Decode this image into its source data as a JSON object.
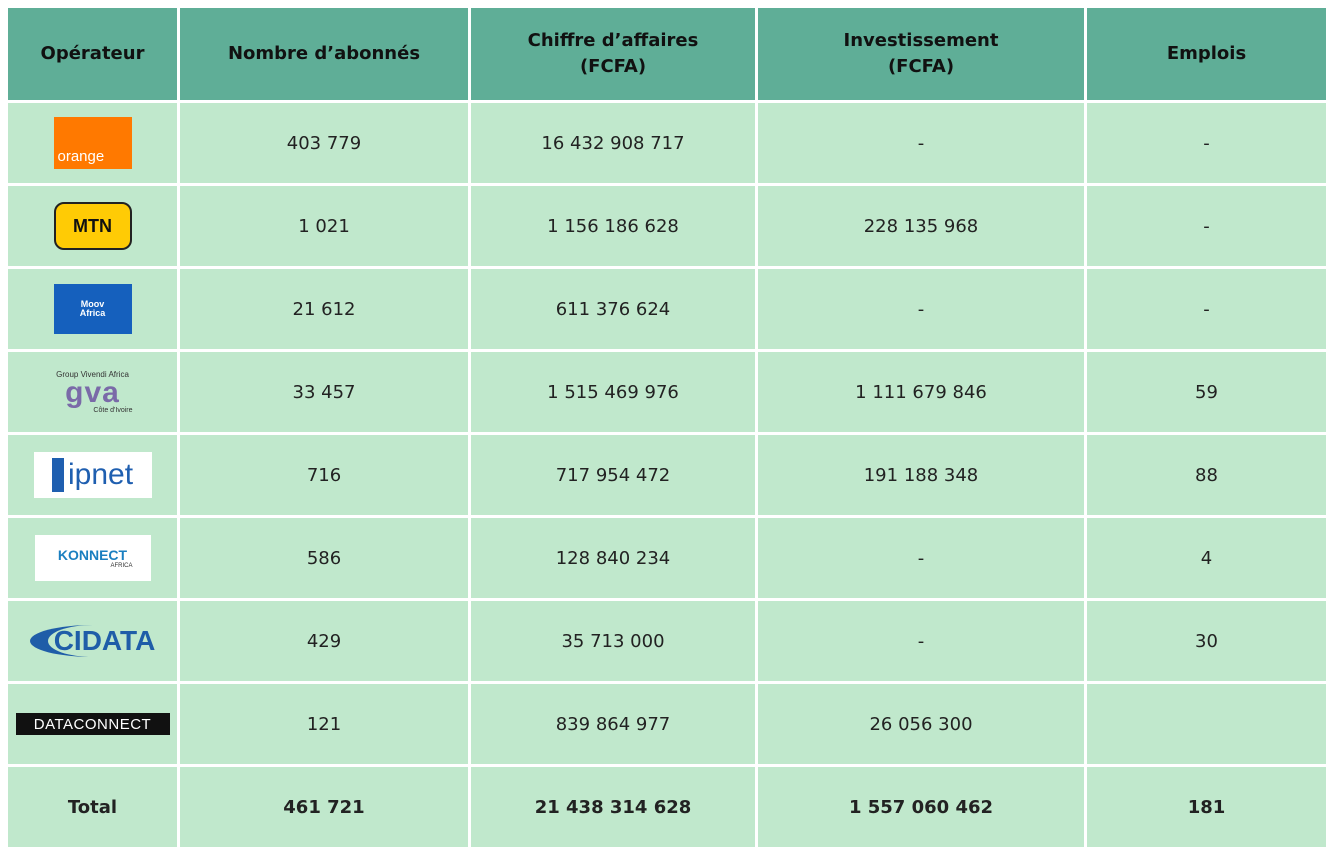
{
  "table": {
    "headers": [
      "Opérateur",
      "Nombre d’abonnés",
      "Chiffre d’affaires (FCFA)",
      "Investissement (FCFA)",
      "Emplois"
    ],
    "rows": [
      {
        "operator": [
          "orange"
        ],
        "values": [
          "403 779",
          "16 432 908 717",
          "-",
          "-"
        ]
      },
      {
        "operator": [
          "MTN"
        ],
        "values": [
          "1 021",
          "1 156 186 628",
          "228 135 968",
          "-"
        ]
      },
      {
        "operator": [
          "Moov",
          "Africa"
        ],
        "values": [
          "21 612",
          "611 376 624",
          "-",
          "-"
        ]
      },
      {
        "operator": [
          "Group Vivendi Africa",
          "gva",
          "Côte d'Ivoire"
        ],
        "values": [
          "33 457",
          "1 515 469 976",
          "1 111 679 846",
          "59"
        ]
      },
      {
        "operator": [
          "ipnet"
        ],
        "values": [
          "716",
          "717 954 472",
          "191 188 348",
          "88"
        ]
      },
      {
        "operator": [
          "KONNECT",
          "AFRICA"
        ],
        "values": [
          "586",
          "128 840 234",
          "-",
          "4"
        ]
      },
      {
        "operator": [
          "CIDATA"
        ],
        "values": [
          "429",
          "35 713 000",
          "-",
          "30"
        ]
      },
      {
        "operator": [
          "DATACONNECT"
        ],
        "values": [
          "121",
          "839 864 977",
          "26 056 300",
          null
        ]
      }
    ],
    "total": {
      "label": "Total",
      "values": [
        "461 721",
        "21 438 314 628",
        "1 557 060 462",
        "181"
      ]
    }
  }
}
